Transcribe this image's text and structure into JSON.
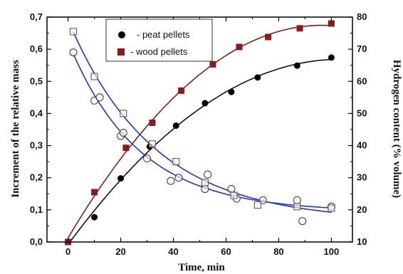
{
  "chart_data": {
    "type": "scatter",
    "title": "",
    "xlabel": "Time, min",
    "ylabel_left": "Increment of the relative mass",
    "ylabel_right": "Hydrogen content (% volume)",
    "xlim": [
      -8,
      108
    ],
    "ylim_left": [
      0,
      0.7
    ],
    "ylim_right": [
      10,
      80
    ],
    "x_ticks": [
      0,
      20,
      40,
      60,
      80,
      100
    ],
    "x_tick_labels": [
      "0",
      "20",
      "40",
      "60",
      "80",
      "100"
    ],
    "y_left_ticks": [
      0,
      0.1,
      0.2,
      0.3,
      0.4,
      0.5,
      0.6,
      0.7
    ],
    "y_left_tick_labels": [
      "0,0",
      "0,1",
      "0,2",
      "0,3",
      "0,4",
      "0,5",
      "0,6",
      "0,7"
    ],
    "y_right_ticks": [
      10,
      20,
      30,
      40,
      50,
      60,
      70,
      80
    ],
    "y_right_tick_labels": [
      "10",
      "20",
      "30",
      "40",
      "50",
      "60",
      "70",
      "80"
    ],
    "grid": false,
    "legend": {
      "position": "top-left",
      "entries": [
        "- peat pellets",
        "- wood pellets"
      ]
    },
    "colors": {
      "peat_fit": "#111111",
      "wood_fit": "#8b1a1a",
      "hydrogen_fit": "#2233cc",
      "peat_marker": "#000000",
      "wood_marker": "#8b1a1a",
      "open_marker_stroke": "#444444"
    },
    "series": [
      {
        "legend_index": 0,
        "axis": "left",
        "marker": "filled-circle",
        "line": "peat_fit",
        "x": [
          0,
          10,
          20,
          31,
          41,
          52,
          62,
          72,
          87,
          100
        ],
        "y": [
          0.0,
          0.077,
          0.198,
          0.297,
          0.362,
          0.432,
          0.467,
          0.512,
          0.549,
          0.574
        ]
      },
      {
        "legend_index": 1,
        "axis": "left",
        "marker": "filled-square",
        "line": "wood_fit",
        "x": [
          0,
          10,
          22,
          32,
          43,
          55,
          65,
          76,
          88,
          100
        ],
        "y": [
          0.0,
          0.155,
          0.293,
          0.371,
          0.471,
          0.553,
          0.607,
          0.638,
          0.665,
          0.68
        ]
      },
      {
        "axis": "right",
        "marker": "open-circle",
        "line": "hydrogen_fit",
        "x": [
          2,
          10,
          12,
          20,
          21,
          30,
          39,
          42,
          52,
          53,
          62,
          64,
          74,
          87,
          89,
          100
        ],
        "y": [
          69,
          54,
          55,
          43,
          44,
          36,
          29,
          30,
          26.5,
          31,
          26.5,
          23.5,
          23,
          23,
          16.5,
          21
        ]
      },
      {
        "axis": "right",
        "marker": "open-square",
        "line": "hydrogen_fit",
        "x": [
          2,
          10,
          21,
          32,
          41,
          52,
          63,
          72,
          87,
          100
        ],
        "y": [
          75.5,
          61.5,
          50,
          40.5,
          35,
          28.5,
          24.5,
          21.5,
          21,
          20.5
        ]
      }
    ]
  }
}
